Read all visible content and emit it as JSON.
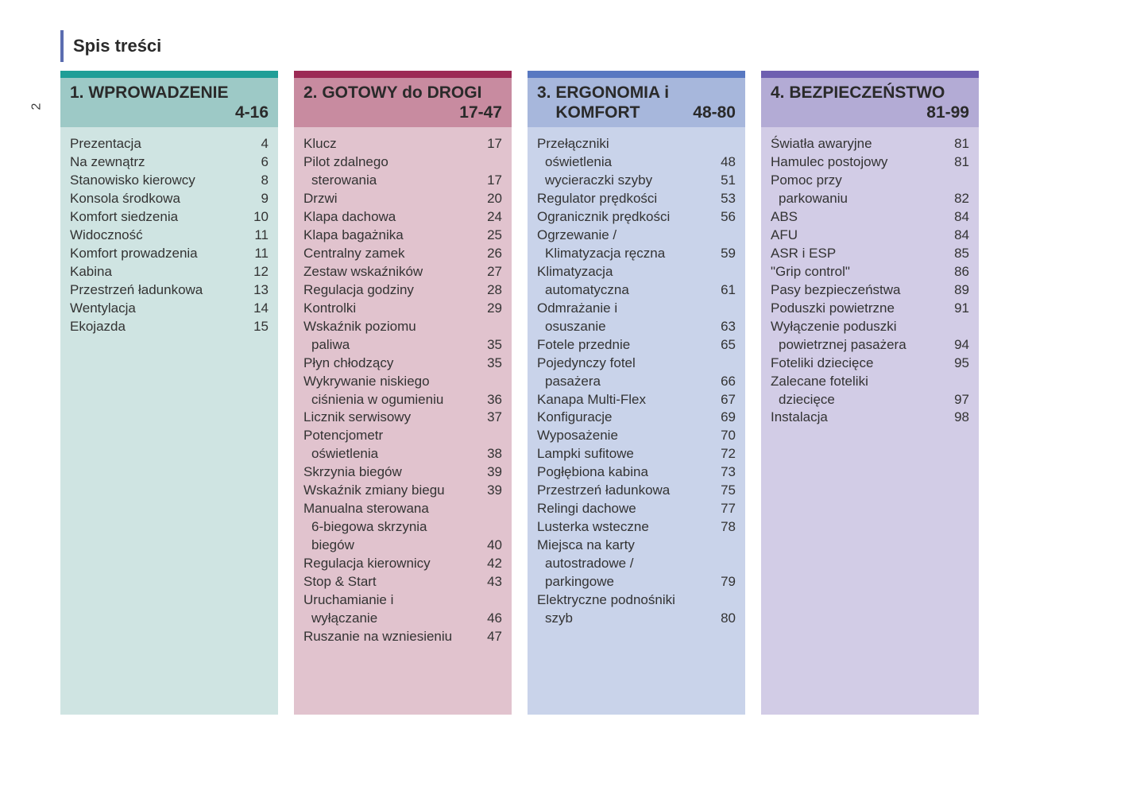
{
  "page_number": "2",
  "title": "Spis treści",
  "columns": [
    {
      "topbar_color": "#1f9e97",
      "header_bg": "#9dc9c6",
      "body_bg": "#cfe4e2",
      "heading": "1. WPROWADZENIE",
      "range": "4-16",
      "entries": [
        {
          "lines": [
            "Prezentacja"
          ],
          "page": "4"
        },
        {
          "lines": [
            "Na zewnątrz"
          ],
          "page": "6"
        },
        {
          "lines": [
            "Stanowisko kierowcy"
          ],
          "page": "8"
        },
        {
          "lines": [
            "Konsola środkowa"
          ],
          "page": "9"
        },
        {
          "lines": [
            "Komfort siedzenia"
          ],
          "page": "10"
        },
        {
          "lines": [
            "Widoczność"
          ],
          "page": "11"
        },
        {
          "lines": [
            "Komfort prowadzenia"
          ],
          "page": "11"
        },
        {
          "lines": [
            "Kabina"
          ],
          "page": "12"
        },
        {
          "lines": [
            "Przestrzeń ładunkowa"
          ],
          "page": "13"
        },
        {
          "lines": [
            "Wentylacja"
          ],
          "page": "14"
        },
        {
          "lines": [
            "Ekojazda"
          ],
          "page": "15"
        }
      ]
    },
    {
      "topbar_color": "#9c2a55",
      "header_bg": "#c88ba0",
      "body_bg": "#e1c3ce",
      "heading": "2. GOTOWY do DROGI",
      "range": "17-47",
      "entries": [
        {
          "lines": [
            "Klucz"
          ],
          "page": "17"
        },
        {
          "lines": [
            "Pilot zdalnego",
            "sterowania"
          ],
          "page": "17"
        },
        {
          "lines": [
            "Drzwi"
          ],
          "page": "20"
        },
        {
          "lines": [
            "Klapa dachowa"
          ],
          "page": "24"
        },
        {
          "lines": [
            "Klapa bagażnika"
          ],
          "page": "25"
        },
        {
          "lines": [
            "Centralny zamek"
          ],
          "page": "26"
        },
        {
          "lines": [
            "Zestaw wskaźników"
          ],
          "page": "27"
        },
        {
          "lines": [
            "Regulacja godziny"
          ],
          "page": "28"
        },
        {
          "lines": [
            "Kontrolki"
          ],
          "page": "29"
        },
        {
          "lines": [
            "Wskaźnik poziomu",
            "paliwa"
          ],
          "page": "35"
        },
        {
          "lines": [
            "Płyn chłodzący"
          ],
          "page": "35"
        },
        {
          "lines": [
            "Wykrywanie niskiego",
            "ciśnienia w ogumieniu"
          ],
          "page": "36"
        },
        {
          "lines": [
            "Licznik serwisowy"
          ],
          "page": "37"
        },
        {
          "lines": [
            "Potencjometr",
            "oświetlenia"
          ],
          "page": "38"
        },
        {
          "lines": [
            "Skrzynia biegów"
          ],
          "page": "39"
        },
        {
          "lines": [
            "Wskaźnik zmiany biegu"
          ],
          "page": "39"
        },
        {
          "lines": [
            "Manualna sterowana",
            "6-biegowa skrzynia",
            "biegów"
          ],
          "page": "40"
        },
        {
          "lines": [
            "Regulacja kierownicy"
          ],
          "page": "42"
        },
        {
          "lines": [
            "Stop & Start"
          ],
          "page": "43"
        },
        {
          "lines": [
            "Uruchamianie i",
            "wyłączanie"
          ],
          "page": "46"
        },
        {
          "lines": [
            "Ruszanie na wzniesieniu"
          ],
          "page": "47"
        }
      ]
    },
    {
      "topbar_color": "#5878c1",
      "header_bg": "#a7b7dc",
      "body_bg": "#c9d3ea",
      "heading": "3. ERGONOMIA i\n    KOMFORT",
      "range": "48-80",
      "entries": [
        {
          "lines": [
            "Przełączniki",
            "oświetlenia"
          ],
          "page": "48"
        },
        {
          "lines": [
            "",
            "wycieraczki szyby"
          ],
          "page": "51",
          "indent_first": true
        },
        {
          "lines": [
            "Regulator prędkości"
          ],
          "page": "53"
        },
        {
          "lines": [
            "Ogranicznik prędkości"
          ],
          "page": "56"
        },
        {
          "lines": [
            "Ogrzewanie /",
            "Klimatyzacja ręczna"
          ],
          "page": "59"
        },
        {
          "lines": [
            "Klimatyzacja",
            "automatyczna"
          ],
          "page": "61"
        },
        {
          "lines": [
            "Odmrażanie i",
            "osuszanie"
          ],
          "page": "63"
        },
        {
          "lines": [
            "Fotele przednie"
          ],
          "page": "65"
        },
        {
          "lines": [
            "Pojedynczy fotel",
            "pasażera"
          ],
          "page": "66"
        },
        {
          "lines": [
            "Kanapa Multi-Flex"
          ],
          "page": "67"
        },
        {
          "lines": [
            "Konfiguracje"
          ],
          "page": "69"
        },
        {
          "lines": [
            "Wyposażenie"
          ],
          "page": "70"
        },
        {
          "lines": [
            "Lampki sufitowe"
          ],
          "page": "72"
        },
        {
          "lines": [
            "Pogłębiona kabina"
          ],
          "page": "73"
        },
        {
          "lines": [
            "Przestrzeń ładunkowa"
          ],
          "page": "75"
        },
        {
          "lines": [
            "Relingi dachowe"
          ],
          "page": "77"
        },
        {
          "lines": [
            "Lusterka wsteczne"
          ],
          "page": "78"
        },
        {
          "lines": [
            "Miejsca na karty",
            "autostradowe /",
            "parkingowe"
          ],
          "page": "79"
        },
        {
          "lines": [
            "Elektryczne podnośniki",
            "szyb"
          ],
          "page": "80"
        }
      ]
    },
    {
      "topbar_color": "#6e5fb0",
      "header_bg": "#b3abd5",
      "body_bg": "#d2cce6",
      "heading": "4. BEZPIECZEŃSTWO",
      "range": "81-99",
      "entries": [
        {
          "lines": [
            "Światła awaryjne"
          ],
          "page": "81"
        },
        {
          "lines": [
            "Hamulec postojowy"
          ],
          "page": "81"
        },
        {
          "lines": [
            "Pomoc przy",
            "parkowaniu"
          ],
          "page": "82"
        },
        {
          "lines": [
            "ABS"
          ],
          "page": "84"
        },
        {
          "lines": [
            "AFU"
          ],
          "page": "84"
        },
        {
          "lines": [
            "ASR i ESP"
          ],
          "page": "85"
        },
        {
          "lines": [
            "\"Grip control\""
          ],
          "page": "86"
        },
        {
          "lines": [
            "Pasy bezpieczeństwa"
          ],
          "page": "89"
        },
        {
          "lines": [
            "Poduszki powietrzne"
          ],
          "page": "91"
        },
        {
          "lines": [
            "Wyłączenie poduszki",
            "powietrznej pasażera"
          ],
          "page": "94"
        },
        {
          "lines": [
            "Foteliki dziecięce"
          ],
          "page": "95"
        },
        {
          "lines": [
            "Zalecane foteliki",
            "dziecięce"
          ],
          "page": "97"
        },
        {
          "lines": [
            "Instalacja"
          ],
          "page": "98"
        }
      ]
    }
  ]
}
